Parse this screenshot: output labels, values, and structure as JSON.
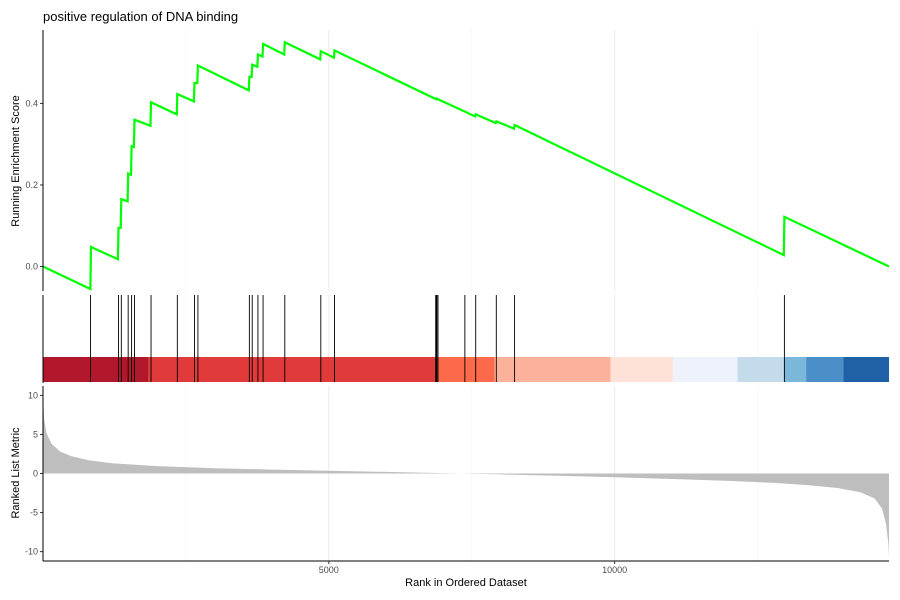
{
  "chart_data": {
    "type": "line",
    "title": "positive regulation of DNA binding",
    "xlabel": "Rank in Ordered Dataset",
    "xlim": [
      0,
      14800
    ],
    "xticks": [
      5000,
      10000
    ],
    "grid": true,
    "legend": "none",
    "running_score": {
      "ylabel": "Running Enrichment Score",
      "ylim": [
        -0.06,
        0.58
      ],
      "yticks": [
        0.0,
        0.2,
        0.4
      ],
      "line_color": "#00ff00",
      "points": [
        [
          0,
          0.0
        ],
        [
          830,
          -0.055
        ],
        [
          840,
          0.048
        ],
        [
          1310,
          0.018
        ],
        [
          1320,
          0.095
        ],
        [
          1360,
          0.095
        ],
        [
          1370,
          0.165
        ],
        [
          1480,
          0.16
        ],
        [
          1490,
          0.228
        ],
        [
          1540,
          0.225
        ],
        [
          1550,
          0.295
        ],
        [
          1590,
          0.293
        ],
        [
          1600,
          0.36
        ],
        [
          1880,
          0.345
        ],
        [
          1890,
          0.403
        ],
        [
          2340,
          0.373
        ],
        [
          2350,
          0.423
        ],
        [
          2640,
          0.405
        ],
        [
          2650,
          0.45
        ],
        [
          2700,
          0.45
        ],
        [
          2710,
          0.493
        ],
        [
          3600,
          0.432
        ],
        [
          3610,
          0.465
        ],
        [
          3650,
          0.465
        ],
        [
          3660,
          0.495
        ],
        [
          3750,
          0.49
        ],
        [
          3760,
          0.52
        ],
        [
          3840,
          0.515
        ],
        [
          3850,
          0.546
        ],
        [
          4220,
          0.52
        ],
        [
          4230,
          0.55
        ],
        [
          4850,
          0.508
        ],
        [
          4860,
          0.528
        ],
        [
          5090,
          0.512
        ],
        [
          5100,
          0.53
        ],
        [
          6880,
          0.41
        ],
        [
          6890,
          0.412
        ],
        [
          6910,
          0.41
        ],
        [
          7380,
          0.38
        ],
        [
          7560,
          0.368
        ],
        [
          7570,
          0.373
        ],
        [
          7920,
          0.352
        ],
        [
          7930,
          0.356
        ],
        [
          8240,
          0.338
        ],
        [
          8250,
          0.347
        ],
        [
          12960,
          0.028
        ],
        [
          12970,
          0.122
        ],
        [
          14800,
          0.0
        ]
      ]
    },
    "hits": [
      830,
      1320,
      1370,
      1490,
      1550,
      1600,
      1890,
      2350,
      2650,
      2710,
      3610,
      3660,
      3760,
      3850,
      4230,
      4860,
      5100,
      6870,
      6880,
      6890,
      6910,
      7380,
      7570,
      7930,
      8250,
      12970
    ],
    "color_bar": [
      {
        "from": 0,
        "to": 1850,
        "color": "#b2182b"
      },
      {
        "from": 1850,
        "to": 6870,
        "color": "#e03a3a"
      },
      {
        "from": 6870,
        "to": 7900,
        "color": "#fb6a4a"
      },
      {
        "from": 7900,
        "to": 9930,
        "color": "#fcb29a"
      },
      {
        "from": 9930,
        "to": 11020,
        "color": "#fee2d7"
      },
      {
        "from": 11020,
        "to": 12150,
        "color": "#eef3fb"
      },
      {
        "from": 12150,
        "to": 12960,
        "color": "#c3dbeb"
      },
      {
        "from": 12960,
        "to": 13350,
        "color": "#7bb6db"
      },
      {
        "from": 13350,
        "to": 14000,
        "color": "#4a8fc8"
      },
      {
        "from": 14000,
        "to": 14800,
        "color": "#1f61a6"
      }
    ],
    "ranked_metric": {
      "ylabel": "Ranked List Metric",
      "ylim": [
        -11.2,
        11.2
      ],
      "yticks": [
        10,
        5,
        0,
        -5,
        -10
      ],
      "fill_color": "#bebebe",
      "points": [
        [
          0,
          10.2
        ],
        [
          20,
          7.0
        ],
        [
          60,
          5.2
        ],
        [
          150,
          3.8
        ],
        [
          300,
          2.8
        ],
        [
          500,
          2.2
        ],
        [
          800,
          1.7
        ],
        [
          1200,
          1.3
        ],
        [
          2000,
          0.95
        ],
        [
          3000,
          0.68
        ],
        [
          4000,
          0.5
        ],
        [
          5000,
          0.35
        ],
        [
          6000,
          0.2
        ],
        [
          7000,
          0.05
        ],
        [
          8000,
          -0.12
        ],
        [
          9000,
          -0.3
        ],
        [
          10000,
          -0.48
        ],
        [
          11000,
          -0.7
        ],
        [
          12000,
          -0.95
        ],
        [
          12800,
          -1.2
        ],
        [
          13400,
          -1.5
        ],
        [
          13900,
          -1.85
        ],
        [
          14300,
          -2.4
        ],
        [
          14550,
          -3.2
        ],
        [
          14680,
          -4.5
        ],
        [
          14750,
          -6.5
        ],
        [
          14790,
          -9.0
        ],
        [
          14800,
          -10.8
        ]
      ]
    }
  }
}
